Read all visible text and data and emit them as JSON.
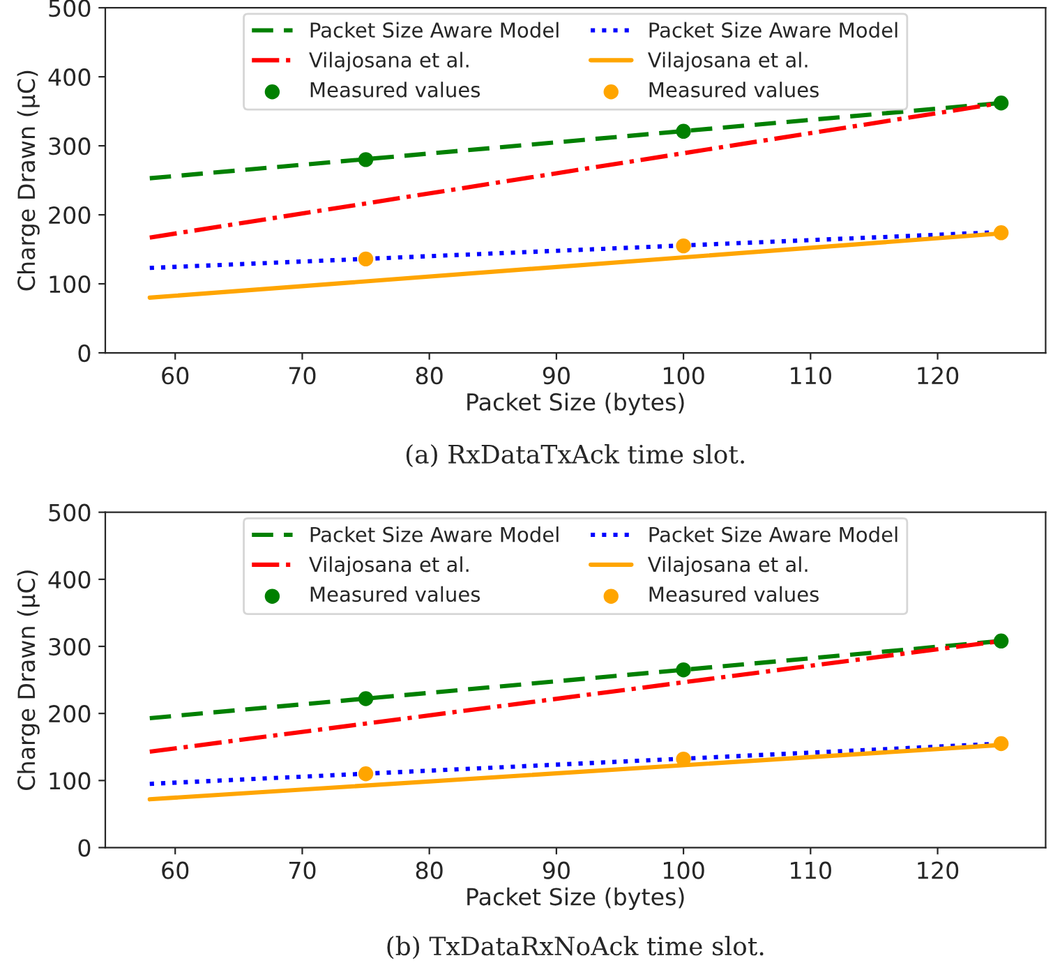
{
  "chart_data": [
    {
      "type": "line",
      "xlabel": "Packet Size (bytes)",
      "ylabel": "Charge Drawn (μC)",
      "xlim": [
        54.5,
        128.5
      ],
      "xticks": [
        60,
        70,
        80,
        90,
        100,
        110,
        120
      ],
      "ylim": [
        0,
        500
      ],
      "yticks": [
        0,
        100,
        200,
        300,
        400,
        500
      ],
      "grid": false,
      "legend": "top",
      "annotations": [
        "(a) RxDataTxAck time slot."
      ],
      "series": [
        {
          "name": "Packet Size Aware Model",
          "color": "#008000",
          "line_style": "dashed",
          "x": [
            58,
            125
          ],
          "values": [
            253,
            362
          ]
        },
        {
          "name": "Vilajosana et al.",
          "color": "#ff0000",
          "line_style": "dashdot",
          "x": [
            58,
            125
          ],
          "values": [
            167,
            362
          ]
        },
        {
          "type": "scatter",
          "name": "Measured values",
          "color": "#008000",
          "marker": "circle",
          "x": [
            75,
            100,
            125
          ],
          "values": [
            280,
            321,
            362
          ]
        },
        {
          "name": "Packet Size Aware Model",
          "color": "#0000ff",
          "line_style": "dotted",
          "x": [
            58,
            125
          ],
          "values": [
            123,
            175
          ]
        },
        {
          "name": "Vilajosana et al.",
          "color": "#ffa500",
          "line_style": "solid",
          "x": [
            58,
            125
          ],
          "values": [
            80,
            173
          ]
        },
        {
          "type": "scatter",
          "name": "Measured values",
          "color": "#ffa500",
          "marker": "circle",
          "x": [
            75,
            100,
            125
          ],
          "values": [
            136,
            155,
            174
          ]
        }
      ]
    },
    {
      "type": "line",
      "xlabel": "Packet Size (bytes)",
      "ylabel": "Charge Drawn (μC)",
      "xlim": [
        54.5,
        128.5
      ],
      "xticks": [
        60,
        70,
        80,
        90,
        100,
        110,
        120
      ],
      "ylim": [
        0,
        500
      ],
      "yticks": [
        0,
        100,
        200,
        300,
        400,
        500
      ],
      "grid": false,
      "legend": "top",
      "annotations": [
        "(b) TxDataRxNoAck time slot."
      ],
      "series": [
        {
          "name": "Packet Size Aware Model",
          "color": "#008000",
          "line_style": "dashed",
          "x": [
            58,
            125
          ],
          "values": [
            193,
            308
          ]
        },
        {
          "name": "Vilajosana et al.",
          "color": "#ff0000",
          "line_style": "dashdot",
          "x": [
            58,
            125
          ],
          "values": [
            143,
            308
          ]
        },
        {
          "type": "scatter",
          "name": "Measured values",
          "color": "#008000",
          "marker": "circle",
          "x": [
            75,
            100,
            125
          ],
          "values": [
            222,
            265,
            308
          ]
        },
        {
          "name": "Packet Size Aware Model",
          "color": "#0000ff",
          "line_style": "dotted",
          "x": [
            58,
            125
          ],
          "values": [
            95,
            155
          ]
        },
        {
          "name": "Vilajosana et al.",
          "color": "#ffa500",
          "line_style": "solid",
          "x": [
            58,
            125
          ],
          "values": [
            72,
            153
          ]
        },
        {
          "type": "scatter",
          "name": "Measured values",
          "color": "#ffa500",
          "marker": "circle",
          "x": [
            75,
            100,
            125
          ],
          "values": [
            110,
            132,
            155
          ]
        }
      ]
    }
  ]
}
